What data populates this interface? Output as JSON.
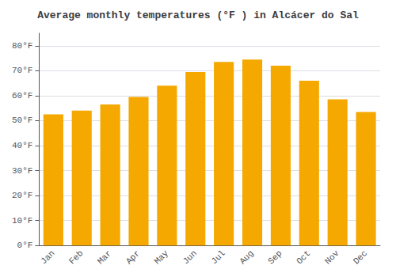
{
  "chart_data": {
    "type": "bar",
    "title": "Average monthly temperatures (°F ) in Alcácer do Sal",
    "categories": [
      "Jan",
      "Feb",
      "Mar",
      "Apr",
      "May",
      "Jun",
      "Jul",
      "Aug",
      "Sep",
      "Oct",
      "Nov",
      "Dec"
    ],
    "values": [
      52.5,
      54.0,
      56.5,
      59.5,
      64.0,
      69.5,
      73.5,
      74.5,
      72.0,
      66.0,
      58.5,
      53.5
    ],
    "color": "#F5A800",
    "ylim": [
      0,
      85
    ],
    "yticks": [
      {
        "value": 0,
        "label": "0°F"
      },
      {
        "value": 10,
        "label": "10°F"
      },
      {
        "value": 20,
        "label": "20°F"
      },
      {
        "value": 30,
        "label": "30°F"
      },
      {
        "value": 40,
        "label": "40°F"
      },
      {
        "value": 50,
        "label": "50°F"
      },
      {
        "value": 60,
        "label": "60°F"
      },
      {
        "value": 70,
        "label": "70°F"
      },
      {
        "value": 80,
        "label": "80°F"
      }
    ],
    "grid": true
  }
}
